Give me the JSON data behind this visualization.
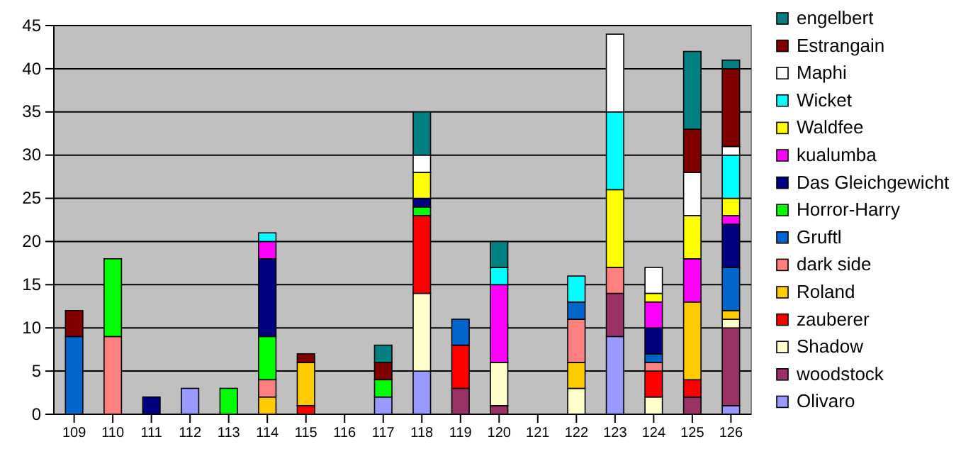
{
  "chart_data": {
    "type": "bar",
    "stacked": true,
    "categories": [
      "109",
      "110",
      "111",
      "112",
      "113",
      "114",
      "115",
      "116",
      "117",
      "118",
      "119",
      "120",
      "121",
      "122",
      "123",
      "124",
      "125",
      "126"
    ],
    "ylim": [
      0,
      45
    ],
    "yticks": [
      0,
      5,
      10,
      15,
      20,
      25,
      30,
      35,
      40,
      45
    ],
    "grid": "y",
    "legend": "right",
    "series": [
      {
        "name": "Olivaro",
        "color": "#9999ff",
        "values": [
          null,
          null,
          null,
          3,
          null,
          null,
          null,
          null,
          2,
          5,
          null,
          null,
          null,
          null,
          9,
          null,
          null,
          1
        ]
      },
      {
        "name": "woodstock",
        "color": "#993366",
        "values": [
          null,
          null,
          null,
          null,
          null,
          null,
          null,
          null,
          null,
          null,
          3,
          1,
          null,
          null,
          5,
          null,
          2,
          9
        ]
      },
      {
        "name": "Shadow",
        "color": "#ffffcc",
        "values": [
          null,
          null,
          null,
          null,
          null,
          null,
          null,
          null,
          null,
          9,
          null,
          5,
          null,
          3,
          null,
          2,
          null,
          1
        ]
      },
      {
        "name": "zauberer",
        "color": "#ff0000",
        "values": [
          null,
          null,
          null,
          null,
          null,
          null,
          1,
          null,
          null,
          9,
          5,
          null,
          null,
          null,
          null,
          3,
          2,
          null
        ]
      },
      {
        "name": "Roland",
        "color": "#ffcc00",
        "values": [
          null,
          null,
          null,
          null,
          null,
          2,
          5,
          null,
          null,
          null,
          null,
          null,
          null,
          3,
          null,
          null,
          9,
          1
        ]
      },
      {
        "name": "dark side",
        "color": "#ff8080",
        "values": [
          null,
          9,
          null,
          null,
          null,
          2,
          null,
          null,
          null,
          null,
          null,
          null,
          null,
          5,
          3,
          1,
          null,
          null
        ]
      },
      {
        "name": "Gruftl",
        "color": "#0066cc",
        "values": [
          9,
          null,
          null,
          null,
          null,
          null,
          null,
          null,
          null,
          null,
          3,
          null,
          null,
          2,
          null,
          1,
          null,
          5
        ]
      },
      {
        "name": "Horror-Harry",
        "color": "#00ff00",
        "values": [
          null,
          9,
          null,
          null,
          3,
          5,
          null,
          null,
          2,
          1,
          null,
          null,
          null,
          null,
          null,
          null,
          null,
          null
        ]
      },
      {
        "name": "Das Gleichgewicht",
        "color": "#000080",
        "values": [
          null,
          null,
          2,
          null,
          null,
          9,
          null,
          null,
          null,
          1,
          null,
          null,
          null,
          null,
          null,
          3,
          null,
          5
        ]
      },
      {
        "name": "kualumba",
        "color": "#ff00ff",
        "values": [
          null,
          null,
          null,
          null,
          null,
          2,
          null,
          null,
          null,
          null,
          null,
          9,
          null,
          null,
          null,
          3,
          5,
          1
        ]
      },
      {
        "name": "Waldfee",
        "color": "#ffff00",
        "values": [
          null,
          null,
          null,
          null,
          null,
          null,
          null,
          null,
          null,
          3,
          null,
          null,
          null,
          null,
          9,
          1,
          5,
          2
        ]
      },
      {
        "name": "Wicket",
        "color": "#00ffff",
        "values": [
          null,
          null,
          null,
          null,
          null,
          1,
          null,
          null,
          null,
          null,
          null,
          2,
          null,
          3,
          9,
          null,
          null,
          5
        ]
      },
      {
        "name": "Maphi",
        "color": "#ffffff",
        "values": [
          null,
          null,
          null,
          null,
          null,
          null,
          null,
          null,
          null,
          2,
          null,
          null,
          null,
          null,
          9,
          3,
          5,
          1
        ]
      },
      {
        "name": "Estrangain",
        "color": "#800000",
        "values": [
          3,
          null,
          null,
          null,
          null,
          null,
          1,
          null,
          2,
          null,
          null,
          null,
          null,
          null,
          null,
          null,
          5,
          9
        ]
      },
      {
        "name": "engelbert",
        "color": "#008080",
        "values": [
          null,
          null,
          null,
          null,
          null,
          null,
          null,
          null,
          2,
          5,
          null,
          3,
          null,
          null,
          null,
          null,
          9,
          1
        ]
      }
    ]
  }
}
